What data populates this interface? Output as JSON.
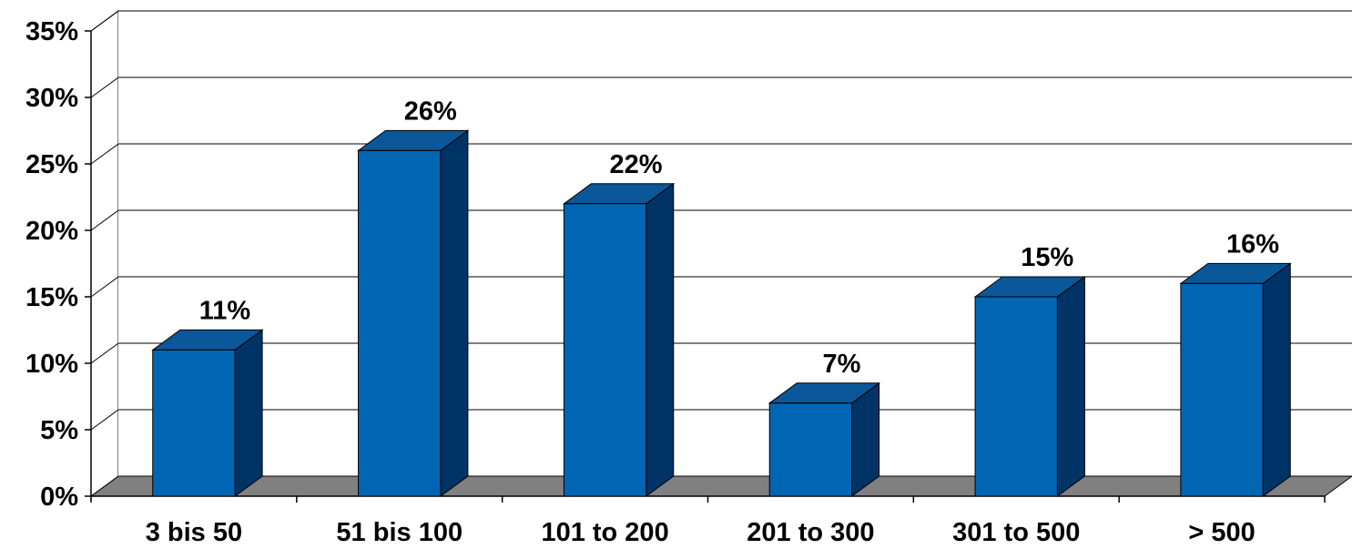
{
  "chart_data": {
    "type": "bar",
    "style": "3d-column",
    "categories": [
      "3 bis 50",
      "51 bis 100",
      "101 to 200",
      "201 to 300",
      "301 to 500",
      "> 500"
    ],
    "values": [
      11,
      26,
      22,
      7,
      15,
      16
    ],
    "data_labels": [
      "11%",
      "26%",
      "22%",
      "7%",
      "15%",
      "16%"
    ],
    "title": "",
    "xlabel": "",
    "ylabel": "",
    "ylim": [
      0,
      35
    ],
    "yticks": [
      0,
      5,
      10,
      15,
      20,
      25,
      30,
      35
    ],
    "ytick_labels": [
      "0%",
      "5%",
      "10%",
      "15%",
      "20%",
      "25%",
      "30%",
      "35%"
    ],
    "grid": true,
    "legend": "none",
    "colors": {
      "bar_front": "#0066B3",
      "bar_top": "#0A5799",
      "bar_side": "#003366",
      "floor": "#808080",
      "grid": "#000000"
    }
  }
}
